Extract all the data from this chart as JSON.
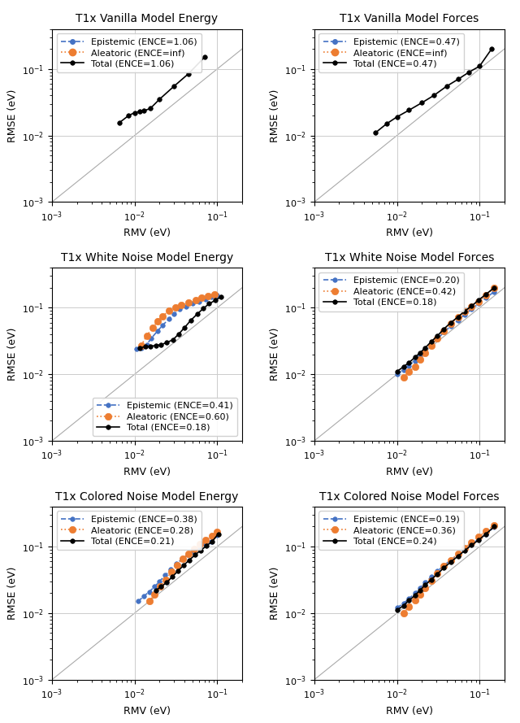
{
  "panels": [
    {
      "title": "T1x Vanilla Model Energy",
      "legend_loc": "upper left",
      "xlim": [
        0.001,
        0.2
      ],
      "ylim": [
        0.001,
        0.4
      ],
      "epistemic": {
        "label": "Epistemic (ENCE=1.06)",
        "x": [],
        "y": [],
        "show_in_legend": true
      },
      "aleatoric": {
        "label": "Aleatoric (ENCE=inf)",
        "x": [],
        "y": [],
        "show_in_legend": true
      },
      "total": {
        "label": "Total (ENCE=1.06)",
        "x": [
          0.0065,
          0.0085,
          0.01,
          0.0115,
          0.013,
          0.0155,
          0.02,
          0.03,
          0.045,
          0.07
        ],
        "y": [
          0.0155,
          0.02,
          0.022,
          0.023,
          0.0235,
          0.0255,
          0.035,
          0.055,
          0.085,
          0.15
        ]
      }
    },
    {
      "title": "T1x Vanilla Model Forces",
      "legend_loc": "upper left",
      "xlim": [
        0.001,
        0.2
      ],
      "ylim": [
        0.001,
        0.4
      ],
      "epistemic": {
        "label": "Epistemic (ENCE=0.47)",
        "x": [],
        "y": [],
        "show_in_legend": true
      },
      "aleatoric": {
        "label": "Aleatoric (ENCE=inf)",
        "x": [],
        "y": [],
        "show_in_legend": true
      },
      "total": {
        "label": "Total (ENCE=0.47)",
        "x": [
          0.0055,
          0.0075,
          0.01,
          0.014,
          0.02,
          0.028,
          0.04,
          0.055,
          0.075,
          0.1,
          0.14
        ],
        "y": [
          0.011,
          0.015,
          0.019,
          0.024,
          0.031,
          0.04,
          0.055,
          0.07,
          0.09,
          0.11,
          0.2
        ]
      }
    },
    {
      "title": "T1x White Noise Model Energy",
      "legend_loc": "lower right",
      "xlim": [
        0.001,
        0.2
      ],
      "ylim": [
        0.001,
        0.4
      ],
      "epistemic": {
        "label": "Epistemic (ENCE=0.41)",
        "x": [
          0.0105,
          0.012,
          0.014,
          0.016,
          0.019,
          0.022,
          0.026,
          0.03,
          0.035,
          0.042,
          0.05,
          0.06,
          0.072,
          0.085,
          0.1
        ],
        "y": [
          0.024,
          0.025,
          0.028,
          0.035,
          0.045,
          0.055,
          0.068,
          0.08,
          0.095,
          0.105,
          0.115,
          0.125,
          0.135,
          0.145,
          0.155
        ],
        "show_in_legend": true
      },
      "aleatoric": {
        "label": "Aleatoric (ENCE=0.60)",
        "x": [
          0.012,
          0.014,
          0.0165,
          0.019,
          0.022,
          0.026,
          0.031,
          0.037,
          0.045,
          0.055,
          0.065,
          0.078,
          0.093
        ],
        "y": [
          0.027,
          0.038,
          0.05,
          0.062,
          0.075,
          0.09,
          0.1,
          0.11,
          0.12,
          0.13,
          0.14,
          0.15,
          0.16
        ],
        "show_in_legend": true
      },
      "total": {
        "label": "Total (ENCE=0.18)",
        "x": [
          0.0115,
          0.0135,
          0.0155,
          0.018,
          0.021,
          0.0245,
          0.029,
          0.034,
          0.04,
          0.048,
          0.057,
          0.068,
          0.08,
          0.095,
          0.11
        ],
        "y": [
          0.025,
          0.026,
          0.0265,
          0.027,
          0.028,
          0.03,
          0.033,
          0.04,
          0.05,
          0.065,
          0.08,
          0.098,
          0.115,
          0.13,
          0.145
        ]
      }
    },
    {
      "title": "T1x White Noise Model Forces",
      "legend_loc": "upper left",
      "xlim": [
        0.001,
        0.2
      ],
      "ylim": [
        0.001,
        0.4
      ],
      "epistemic": {
        "label": "Epistemic (ENCE=0.20)",
        "x": [
          0.01,
          0.012,
          0.014,
          0.0165,
          0.019,
          0.022,
          0.026,
          0.031,
          0.037,
          0.045,
          0.055,
          0.066,
          0.08,
          0.097,
          0.12,
          0.15
        ],
        "y": [
          0.01,
          0.0115,
          0.0135,
          0.016,
          0.019,
          0.023,
          0.028,
          0.034,
          0.043,
          0.053,
          0.065,
          0.079,
          0.095,
          0.115,
          0.14,
          0.175
        ],
        "show_in_legend": true
      },
      "aleatoric": {
        "label": "Aleatoric (ENCE=0.42)",
        "x": [
          0.012,
          0.014,
          0.0165,
          0.019,
          0.022,
          0.026,
          0.031,
          0.037,
          0.045,
          0.055,
          0.066,
          0.08,
          0.097,
          0.12,
          0.15
        ],
        "y": [
          0.009,
          0.011,
          0.013,
          0.0165,
          0.021,
          0.027,
          0.035,
          0.045,
          0.058,
          0.072,
          0.087,
          0.105,
          0.125,
          0.155,
          0.2
        ],
        "show_in_legend": true
      },
      "total": {
        "label": "Total (ENCE=0.18)",
        "x": [
          0.01,
          0.012,
          0.014,
          0.0165,
          0.019,
          0.022,
          0.026,
          0.031,
          0.037,
          0.045,
          0.055,
          0.066,
          0.08,
          0.097,
          0.12,
          0.15
        ],
        "y": [
          0.011,
          0.013,
          0.015,
          0.018,
          0.021,
          0.025,
          0.031,
          0.038,
          0.048,
          0.06,
          0.073,
          0.089,
          0.106,
          0.13,
          0.16,
          0.2
        ]
      }
    },
    {
      "title": "T1x Colored Noise Model Energy",
      "legend_loc": "upper left",
      "xlim": [
        0.001,
        0.2
      ],
      "ylim": [
        0.001,
        0.4
      ],
      "epistemic": {
        "label": "Epistemic (ENCE=0.38)",
        "x": [
          0.011,
          0.013,
          0.015,
          0.0175,
          0.02,
          0.0235,
          0.0275,
          0.032,
          0.0375,
          0.044,
          0.052,
          0.061,
          0.072,
          0.085,
          0.1
        ],
        "y": [
          0.015,
          0.018,
          0.021,
          0.025,
          0.03,
          0.037,
          0.045,
          0.055,
          0.065,
          0.075,
          0.085,
          0.095,
          0.108,
          0.12,
          0.15
        ],
        "show_in_legend": true
      },
      "aleatoric": {
        "label": "Aleatoric (ENCE=0.28)",
        "x": [
          0.015,
          0.0175,
          0.0205,
          0.024,
          0.028,
          0.033,
          0.038,
          0.045,
          0.053,
          0.062,
          0.073,
          0.086,
          0.1
        ],
        "y": [
          0.015,
          0.019,
          0.025,
          0.032,
          0.042,
          0.052,
          0.065,
          0.078,
          0.093,
          0.108,
          0.125,
          0.145,
          0.165
        ],
        "show_in_legend": true
      },
      "total": {
        "label": "Total (ENCE=0.21)",
        "x": [
          0.018,
          0.021,
          0.0245,
          0.0285,
          0.0335,
          0.039,
          0.046,
          0.054,
          0.063,
          0.074,
          0.087,
          0.103
        ],
        "y": [
          0.022,
          0.025,
          0.029,
          0.035,
          0.043,
          0.052,
          0.063,
          0.075,
          0.088,
          0.102,
          0.12,
          0.155
        ]
      }
    },
    {
      "title": "T1x Colored Noise Model Forces",
      "legend_loc": "upper left",
      "xlim": [
        0.001,
        0.2
      ],
      "ylim": [
        0.001,
        0.4
      ],
      "epistemic": {
        "label": "Epistemic (ENCE=0.19)",
        "x": [
          0.01,
          0.012,
          0.014,
          0.0165,
          0.019,
          0.022,
          0.026,
          0.031,
          0.037,
          0.045,
          0.055,
          0.066,
          0.08,
          0.097,
          0.12,
          0.15
        ],
        "y": [
          0.012,
          0.014,
          0.0165,
          0.02,
          0.024,
          0.029,
          0.035,
          0.043,
          0.052,
          0.063,
          0.075,
          0.09,
          0.108,
          0.13,
          0.155,
          0.195
        ],
        "show_in_legend": true
      },
      "aleatoric": {
        "label": "Aleatoric (ENCE=0.36)",
        "x": [
          0.012,
          0.014,
          0.0165,
          0.019,
          0.022,
          0.026,
          0.031,
          0.037,
          0.045,
          0.055,
          0.066,
          0.08,
          0.097,
          0.12,
          0.15
        ],
        "y": [
          0.01,
          0.0125,
          0.0155,
          0.019,
          0.024,
          0.031,
          0.04,
          0.051,
          0.063,
          0.078,
          0.095,
          0.115,
          0.14,
          0.17,
          0.21
        ],
        "show_in_legend": true
      },
      "total": {
        "label": "Total (ENCE=0.24)",
        "x": [
          0.01,
          0.012,
          0.014,
          0.0165,
          0.019,
          0.022,
          0.026,
          0.031,
          0.037,
          0.045,
          0.055,
          0.066,
          0.08,
          0.097,
          0.12,
          0.15
        ],
        "y": [
          0.011,
          0.013,
          0.0155,
          0.0185,
          0.022,
          0.0265,
          0.032,
          0.039,
          0.048,
          0.059,
          0.072,
          0.087,
          0.105,
          0.125,
          0.155,
          0.2
        ]
      }
    }
  ],
  "epistemic_color": "#4472C4",
  "aleatoric_color": "#ED7D31",
  "total_color": "#000000",
  "diagonal_color": "#aaaaaa",
  "xlabel": "RMV (eV)",
  "ylabel": "RMSE (eV)",
  "epi_marker": "o",
  "ale_marker": "o",
  "tot_marker": "o",
  "epi_markersize": 4,
  "ale_markersize": 6,
  "tot_markersize": 4,
  "linewidth": 1.2,
  "title_fontsize": 10,
  "label_fontsize": 9,
  "tick_fontsize": 8,
  "legend_fontsize": 8
}
